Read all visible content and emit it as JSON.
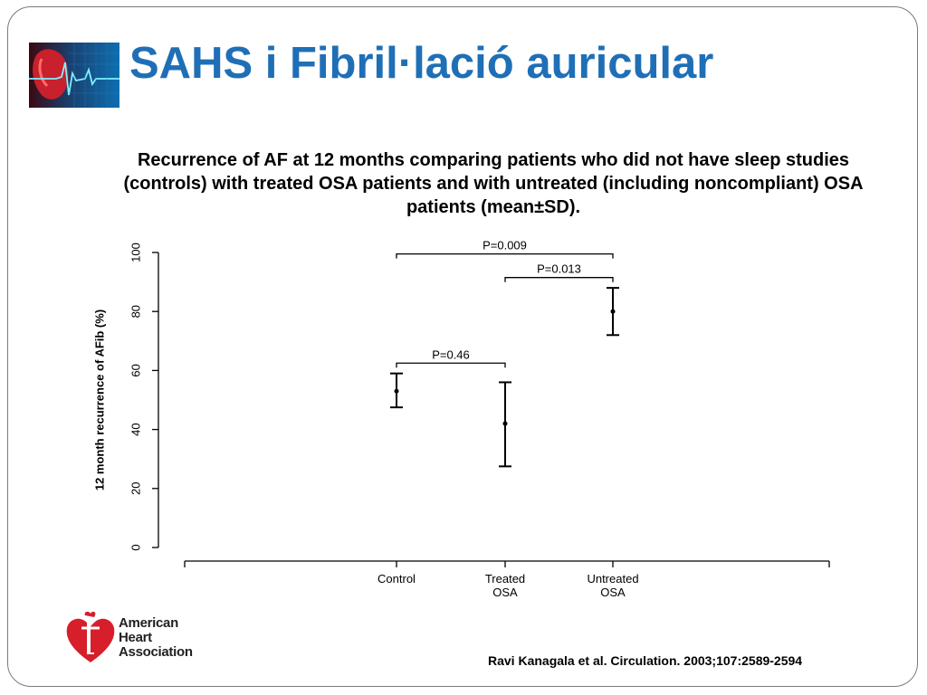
{
  "slide": {
    "title": "SAHS i Fibril·lació auricular",
    "subtitle": "Recurrence of AF at 12 months comparing patients who did not have sleep studies (controls) with treated OSA patients and with untreated (including noncompliant) OSA patients (mean±SD).",
    "citation": "Ravi Kanagala et al. Circulation. 2003;107:2589-2594",
    "logo": {
      "line1": "American",
      "line2": "Heart",
      "line3": "Association"
    },
    "colors": {
      "title": "#1f6fb6",
      "logo_red": "#d71e2b",
      "frame": "#7a7a7a"
    }
  },
  "chart_data": {
    "type": "scatter",
    "ylabel": "12 month recurrence of AFib (%)",
    "ylim": [
      0,
      100
    ],
    "yticks": [
      "0",
      "20",
      "40",
      "60",
      "80",
      "100"
    ],
    "categories": [
      "Control",
      "Treated OSA",
      "Untreated OSA"
    ],
    "category_labels": [
      [
        "Control"
      ],
      [
        "Treated",
        "OSA"
      ],
      [
        "Untreated",
        "OSA"
      ]
    ],
    "points": [
      {
        "category": "Control",
        "mean": 53,
        "lower": 47.5,
        "upper": 59
      },
      {
        "category": "Treated OSA",
        "mean": 42,
        "lower": 27.5,
        "upper": 56
      },
      {
        "category": "Untreated OSA",
        "mean": 80,
        "lower": 72,
        "upper": 88
      }
    ],
    "comparisons": [
      {
        "from": "Control",
        "to": "Treated OSA",
        "label": "P=0.46",
        "level": 62.5
      },
      {
        "from": "Treated OSA",
        "to": "Untreated OSA",
        "label": "P=0.013",
        "level": 91.5
      },
      {
        "from": "Control",
        "to": "Untreated OSA",
        "label": "P=0.009",
        "level": 99.5
      }
    ],
    "grid": false,
    "legend": "none"
  }
}
